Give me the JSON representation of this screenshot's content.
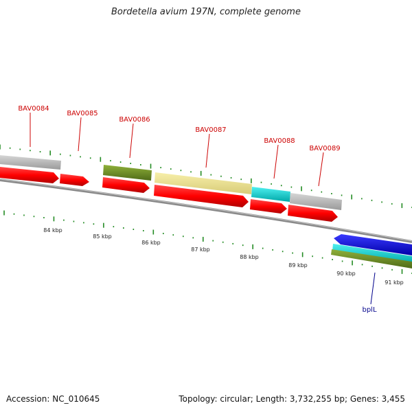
{
  "title": "Bordetella avium 197N, complete genome",
  "genes": [
    {
      "label": "BAV0084"
    },
    {
      "label": "BAV0085"
    },
    {
      "label": "BAV0086"
    },
    {
      "label": "BAV0087"
    },
    {
      "label": "BAV0088"
    },
    {
      "label": "BAV0089"
    },
    {
      "label": "bplL"
    }
  ],
  "scale_ticks": [
    "84 kbp",
    "85 kbp",
    "86 kbp",
    "87 kbp",
    "88 kbp",
    "89 kbp",
    "90 kbp",
    "91 kbp"
  ],
  "colors": {
    "cds": "#ff0000",
    "gray_feature": "#b8b8b8",
    "olive_feature": "#6b8e23",
    "yellow_feature": "#f0e68c",
    "cyan_feature": "#00cccc",
    "blue_cds": "#0000ee",
    "tick": "#228b22",
    "label_red": "#cc0000",
    "label_blue": "#00008b"
  },
  "footer": {
    "accession": "Accession: NC_010645",
    "summary": "Topology: circular; Length: 3,732,255 bp; Genes: 3,455"
  }
}
